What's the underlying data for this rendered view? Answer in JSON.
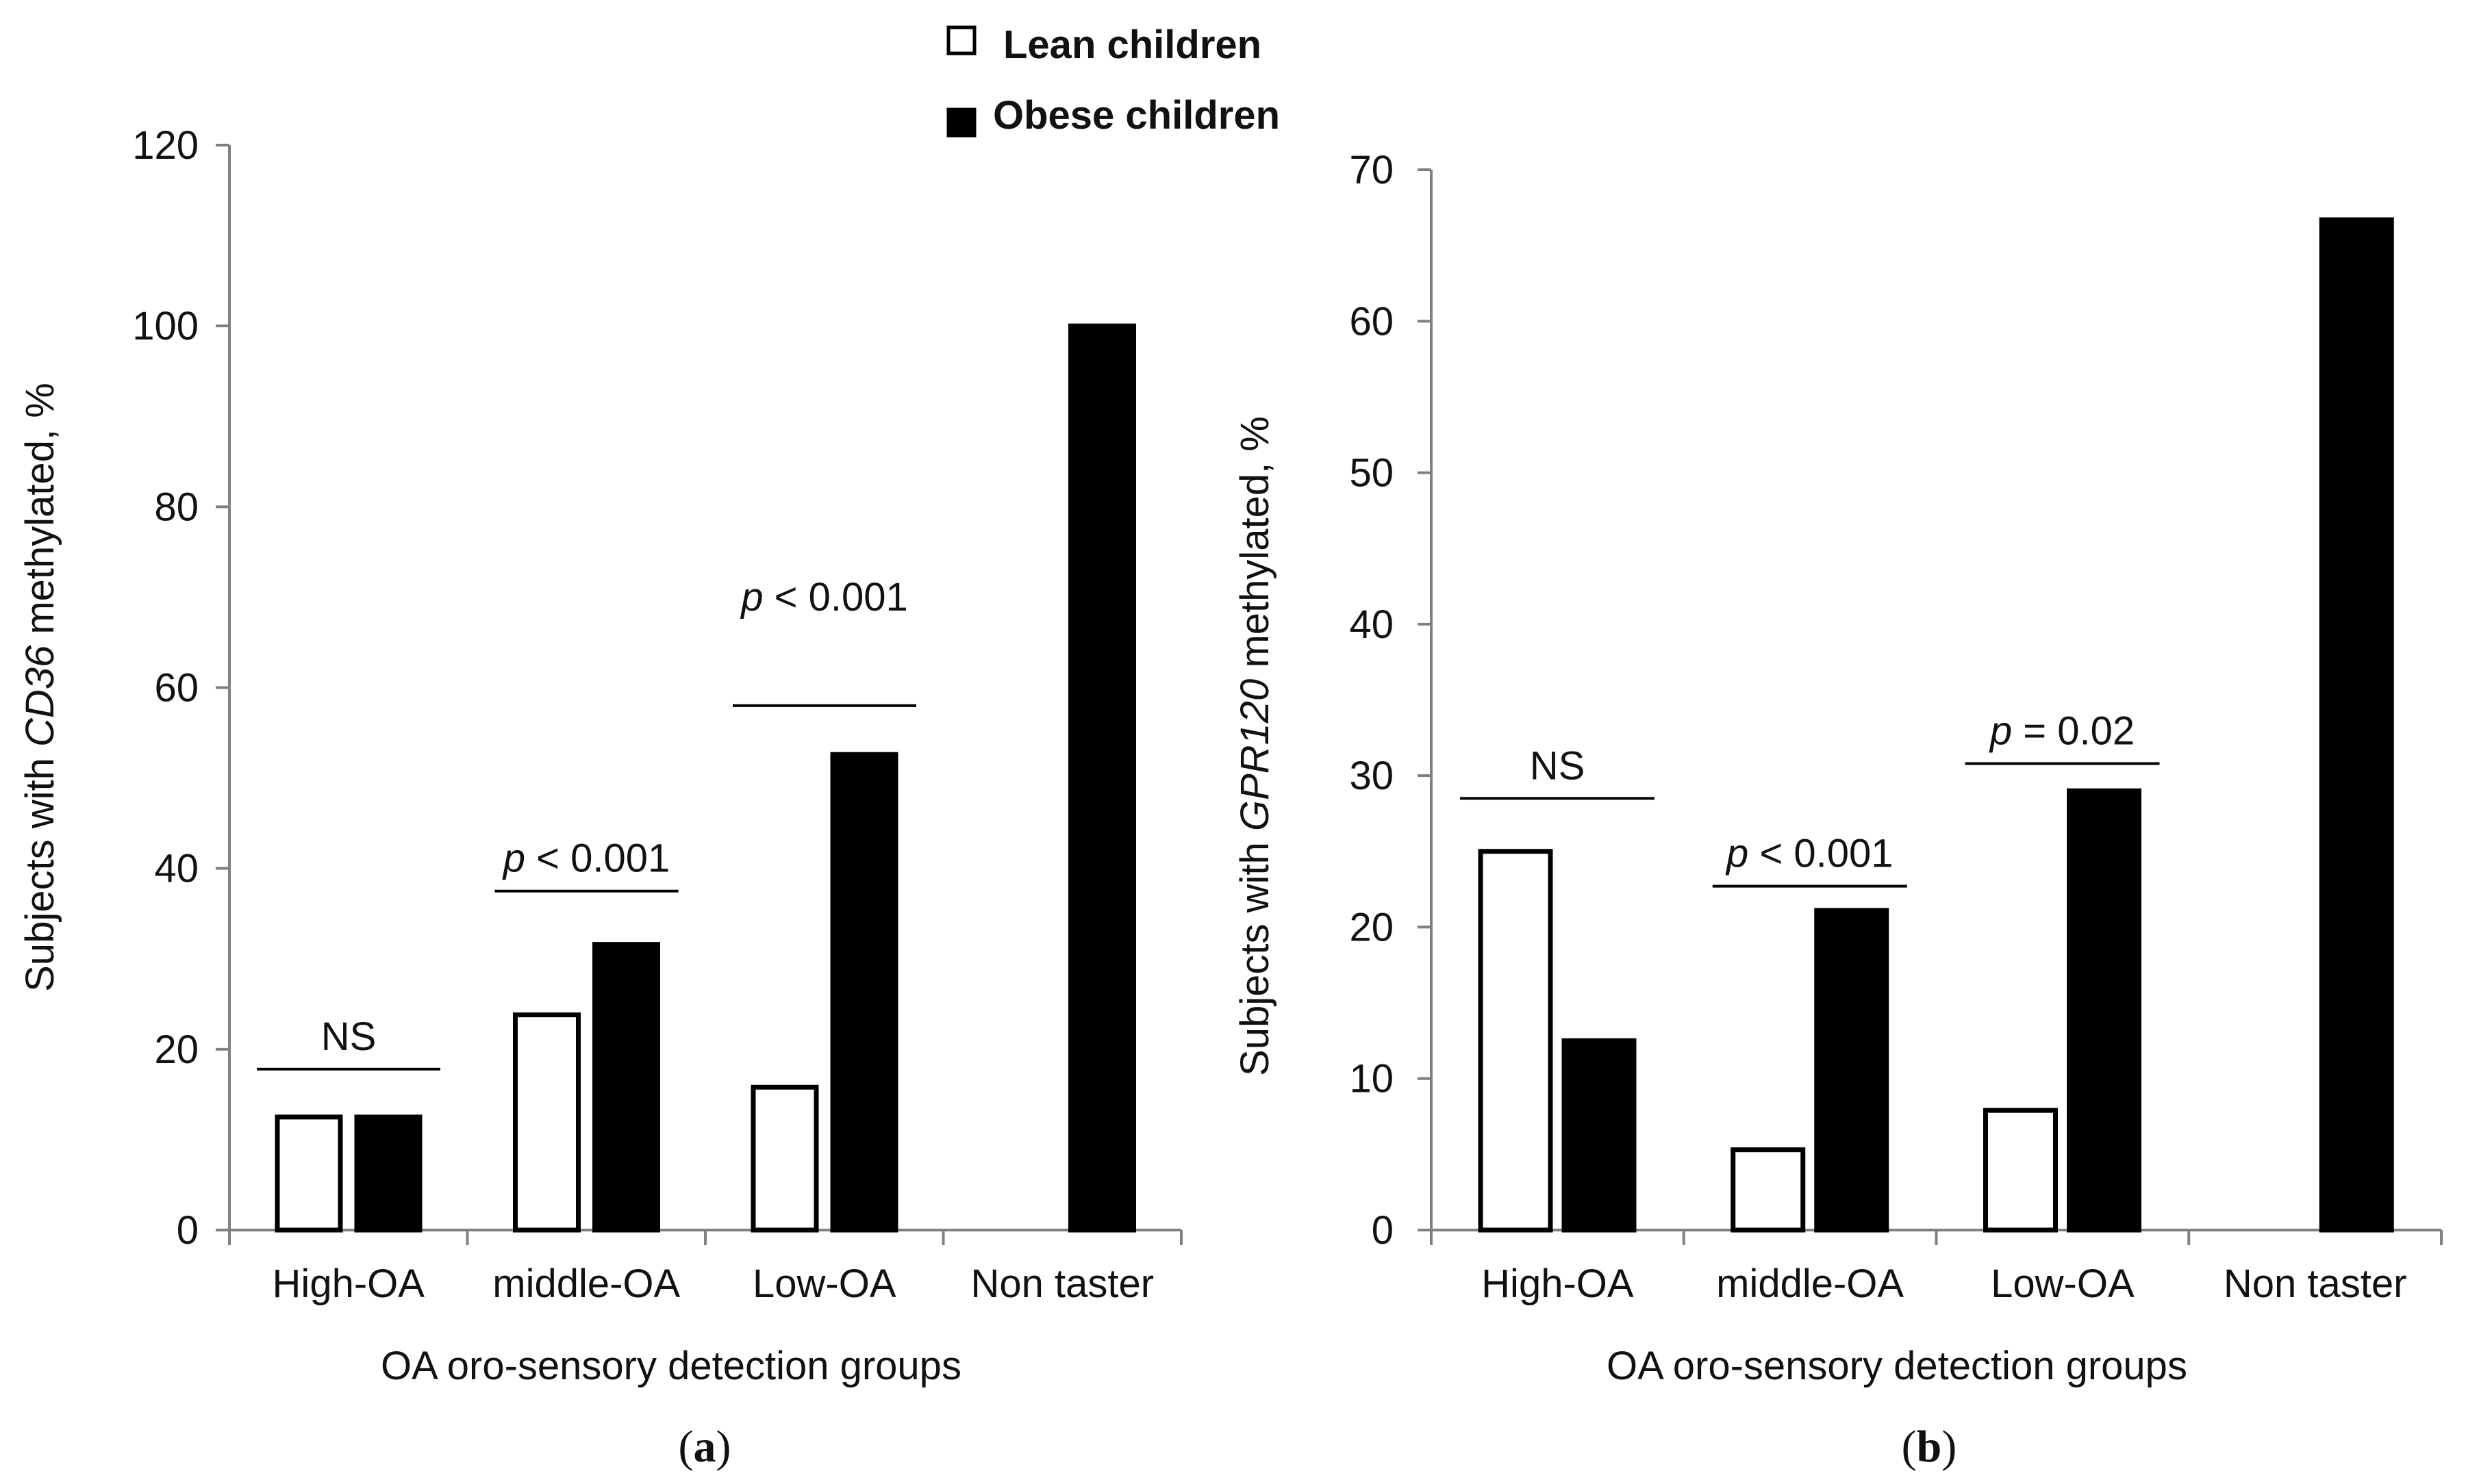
{
  "legend": {
    "items": [
      {
        "label": "Lean children",
        "color": "#ffffff"
      },
      {
        "label": "Obese children",
        "color": "#000000"
      }
    ]
  },
  "colors": {
    "lean": "#ffffff",
    "obese": "#000000",
    "axis": "#808080",
    "stroke": "#000000"
  },
  "chart_data": [
    {
      "type": "bar",
      "panel_label": "a",
      "categories": [
        "High-OA",
        "middle-OA",
        "Low-OA",
        "Non taster"
      ],
      "series": [
        {
          "name": "Lean children",
          "values": [
            12.5,
            23.8,
            15.8,
            null
          ]
        },
        {
          "name": "Obese children",
          "values": [
            12.5,
            31.6,
            52.6,
            100
          ]
        }
      ],
      "xlabel": "OA oro-sensory detection groups",
      "ylabel": {
        "prefix": "Subjects with ",
        "gene": "CD36",
        "suffix": " methylated, %"
      },
      "ylim": [
        0,
        120
      ],
      "yticks": [
        0,
        20,
        40,
        60,
        80,
        100,
        120
      ],
      "annotations": [
        {
          "category": 0,
          "level": 17.8,
          "p_italic": "",
          "text": "NS"
        },
        {
          "category": 1,
          "level": 37.5,
          "p_italic": "p",
          "text": " < 0.001"
        },
        {
          "category": 2,
          "level": 58,
          "p_italic": "p",
          "text": " < 0.001",
          "label_level": 68.5
        }
      ]
    },
    {
      "type": "bar",
      "panel_label": "b",
      "categories": [
        "High-OA",
        "middle-OA",
        "Low-OA",
        "Non taster"
      ],
      "series": [
        {
          "name": "Lean children",
          "values": [
            25,
            5.3,
            7.9,
            null
          ]
        },
        {
          "name": "Obese children",
          "values": [
            12.5,
            21.1,
            29,
            66.7
          ]
        }
      ],
      "xlabel": "OA oro-sensory detection groups",
      "ylabel": {
        "prefix": "Subjects with ",
        "gene": "GPR120",
        "suffix": " methylated, %"
      },
      "ylim": [
        0,
        70
      ],
      "yticks": [
        0,
        10,
        20,
        30,
        40,
        50,
        60,
        70
      ],
      "annotations": [
        {
          "category": 0,
          "level": 28.5,
          "p_italic": "",
          "text": "NS"
        },
        {
          "category": 1,
          "level": 22.7,
          "p_italic": "p",
          "text": " < 0.001"
        },
        {
          "category": 2,
          "level": 30.8,
          "p_italic": "p",
          "text": " = 0.02"
        }
      ]
    }
  ]
}
